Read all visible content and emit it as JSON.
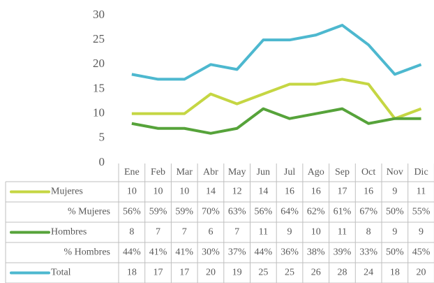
{
  "chart_data": {
    "type": "line",
    "categories": [
      "Ene",
      "Feb",
      "Mar",
      "Abr",
      "May",
      "Jun",
      "Jul",
      "Ago",
      "Sep",
      "Oct",
      "Nov",
      "Dic"
    ],
    "series": [
      {
        "name": "Mujeres",
        "color": "#c5d643",
        "values": [
          10,
          10,
          10,
          14,
          12,
          14,
          16,
          16,
          17,
          16,
          9,
          11
        ]
      },
      {
        "name": "Hombres",
        "color": "#56a33a",
        "values": [
          8,
          7,
          7,
          6,
          7,
          11,
          9,
          10,
          11,
          8,
          9,
          9
        ]
      },
      {
        "name": "Total",
        "color": "#4db8cf",
        "values": [
          18,
          17,
          17,
          20,
          19,
          25,
          25,
          26,
          28,
          24,
          18,
          20
        ]
      }
    ],
    "percent_rows": [
      {
        "name": "% Mujeres",
        "labels": [
          "56%",
          "59%",
          "59%",
          "70%",
          "63%",
          "56%",
          "64%",
          "62%",
          "61%",
          "67%",
          "50%",
          "55%"
        ]
      },
      {
        "name": "% Hombres",
        "labels": [
          "44%",
          "41%",
          "41%",
          "30%",
          "37%",
          "44%",
          "36%",
          "38%",
          "39%",
          "33%",
          "50%",
          "45%"
        ]
      }
    ],
    "ylim": [
      0,
      30
    ],
    "yticks": [
      0,
      5,
      10,
      15,
      20,
      25,
      30
    ],
    "grid": false
  }
}
